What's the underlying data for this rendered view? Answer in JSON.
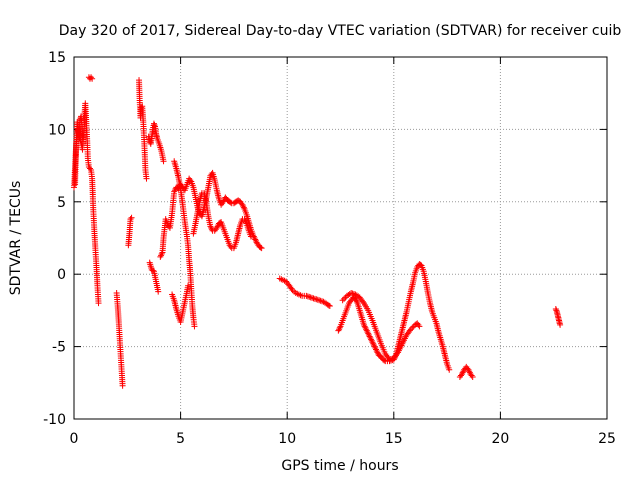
{
  "chart_data": {
    "type": "scatter",
    "title": "Day 320 of 2017, Sidereal Day-to-day VTEC variation (SDTVAR) for receiver cuib",
    "xlabel": "GPS time / hours",
    "ylabel": "SDTVAR / TECUs",
    "xlim": [
      0,
      25
    ],
    "ylim": [
      -10,
      15
    ],
    "xticks": [
      0,
      5,
      10,
      15,
      20,
      25
    ],
    "yticks": [
      -10,
      -5,
      0,
      5,
      10,
      15
    ],
    "xtick_labels": [
      "0",
      "5",
      "10",
      "15",
      "20",
      "25"
    ],
    "ytick_labels": [
      "-10",
      "-5",
      "0",
      "5",
      "10",
      "15"
    ],
    "grid": true,
    "marker": "plus",
    "marker_color": "#ff0000",
    "series": [
      {
        "name": "SDTVAR",
        "segments": [
          [
            [
              0.0,
              6.0
            ],
            [
              0.08,
              8.2
            ],
            [
              0.12,
              9.6
            ],
            [
              0.15,
              10.5
            ],
            [
              0.2,
              9.8
            ],
            [
              0.25,
              9.4
            ],
            [
              0.28,
              10.6
            ],
            [
              0.33,
              10.9
            ],
            [
              0.38,
              10.2
            ],
            [
              0.42,
              9.0
            ],
            [
              0.46,
              9.9
            ],
            [
              0.5,
              11.2
            ],
            [
              0.53,
              11.8
            ],
            [
              0.58,
              10.4
            ],
            [
              0.62,
              9.2
            ],
            [
              0.65,
              8.0
            ],
            [
              0.7,
              7.4
            ],
            [
              0.75,
              7.3
            ],
            [
              0.8,
              7.2
            ],
            [
              0.85,
              6.6
            ],
            [
              0.88,
              5.5
            ],
            [
              0.9,
              4.6
            ],
            [
              0.95,
              3.1
            ],
            [
              1.0,
              1.8
            ],
            [
              1.05,
              0.6
            ],
            [
              1.1,
              -0.8
            ],
            [
              1.15,
              -2.0
            ]
          ],
          [
            [
              0.05,
              6.2
            ],
            [
              0.1,
              9.0
            ],
            [
              0.15,
              9.6
            ],
            [
              0.2,
              10.0
            ],
            [
              0.28,
              9.4
            ],
            [
              0.35,
              9.0
            ],
            [
              0.4,
              8.6
            ]
          ],
          [
            [
              0.7,
              13.6
            ],
            [
              0.75,
              13.5
            ],
            [
              0.8,
              13.6
            ],
            [
              0.85,
              13.5
            ]
          ],
          [
            [
              2.0,
              -1.3
            ],
            [
              2.05,
              -2.2
            ],
            [
              2.1,
              -3.3
            ],
            [
              2.15,
              -4.6
            ],
            [
              2.2,
              -5.8
            ],
            [
              2.25,
              -7.0
            ],
            [
              2.28,
              -7.7
            ]
          ],
          [
            [
              2.55,
              2.0
            ],
            [
              2.6,
              2.8
            ],
            [
              2.65,
              3.8
            ],
            [
              2.7,
              3.9
            ]
          ],
          [
            [
              3.05,
              13.4
            ],
            [
              3.08,
              12.0
            ],
            [
              3.12,
              10.8
            ],
            [
              3.15,
              11.5
            ],
            [
              3.2,
              11.6
            ],
            [
              3.25,
              10.5
            ],
            [
              3.3,
              9.0
            ],
            [
              3.35,
              7.2
            ],
            [
              3.4,
              6.6
            ]
          ],
          [
            [
              3.5,
              9.5
            ],
            [
              3.55,
              9.2
            ],
            [
              3.6,
              9.0
            ],
            [
              3.65,
              9.5
            ],
            [
              3.7,
              10.0
            ],
            [
              3.75,
              10.4
            ],
            [
              3.8,
              10.2
            ],
            [
              3.85,
              9.7
            ],
            [
              3.9,
              9.4
            ],
            [
              4.0,
              9.0
            ],
            [
              4.1,
              8.5
            ],
            [
              4.2,
              7.8
            ]
          ],
          [
            [
              3.55,
              0.8
            ],
            [
              3.65,
              0.3
            ],
            [
              3.75,
              0.2
            ],
            [
              3.85,
              -0.5
            ],
            [
              3.95,
              -1.2
            ]
          ],
          [
            [
              4.05,
              1.2
            ],
            [
              4.15,
              1.5
            ],
            [
              4.2,
              2.5
            ],
            [
              4.3,
              3.8
            ],
            [
              4.4,
              3.4
            ],
            [
              4.5,
              3.2
            ],
            [
              4.6,
              4.2
            ],
            [
              4.7,
              5.7
            ],
            [
              4.8,
              6.0
            ],
            [
              4.9,
              5.9
            ],
            [
              5.0,
              6.2
            ],
            [
              5.1,
              6.0
            ],
            [
              5.2,
              5.8
            ],
            [
              5.3,
              6.2
            ],
            [
              5.4,
              6.6
            ],
            [
              5.5,
              6.4
            ],
            [
              5.6,
              6.0
            ],
            [
              5.7,
              5.3
            ],
            [
              5.8,
              4.6
            ],
            [
              5.9,
              4.2
            ],
            [
              6.0,
              4.0
            ],
            [
              6.1,
              4.6
            ],
            [
              6.2,
              5.2
            ],
            [
              6.3,
              6.0
            ],
            [
              6.4,
              6.8
            ],
            [
              6.5,
              7.0
            ],
            [
              6.6,
              6.5
            ],
            [
              6.7,
              5.8
            ],
            [
              6.8,
              5.2
            ],
            [
              6.9,
              4.8
            ],
            [
              7.0,
              5.0
            ],
            [
              7.1,
              5.3
            ],
            [
              7.2,
              5.1
            ],
            [
              7.3,
              5.0
            ],
            [
              7.4,
              4.9
            ],
            [
              7.5,
              4.9
            ],
            [
              7.6,
              5.0
            ],
            [
              7.7,
              5.1
            ],
            [
              7.8,
              5.0
            ],
            [
              7.9,
              4.8
            ],
            [
              8.0,
              4.5
            ],
            [
              8.1,
              4.1
            ],
            [
              8.2,
              3.6
            ],
            [
              8.3,
              3.1
            ],
            [
              8.4,
              2.7
            ],
            [
              8.5,
              2.4
            ],
            [
              8.6,
              2.1
            ],
            [
              8.7,
              1.9
            ],
            [
              8.8,
              1.8
            ]
          ],
          [
            [
              4.7,
              7.8
            ],
            [
              4.8,
              7.3
            ],
            [
              4.9,
              6.7
            ],
            [
              5.0,
              5.9
            ],
            [
              5.1,
              4.8
            ],
            [
              5.2,
              3.6
            ],
            [
              5.3,
              2.6
            ],
            [
              5.35,
              2.0
            ],
            [
              5.4,
              1.0
            ],
            [
              5.45,
              0.2
            ],
            [
              5.5,
              -1.0
            ],
            [
              5.55,
              -2.2
            ],
            [
              5.6,
              -3.0
            ],
            [
              5.65,
              -3.6
            ]
          ],
          [
            [
              4.6,
              -1.4
            ],
            [
              4.7,
              -1.8
            ],
            [
              4.8,
              -2.4
            ],
            [
              4.9,
              -2.9
            ],
            [
              5.0,
              -3.3
            ],
            [
              5.1,
              -2.6
            ],
            [
              5.2,
              -1.9
            ],
            [
              5.3,
              -1.2
            ],
            [
              5.35,
              -0.8
            ]
          ],
          [
            [
              5.6,
              2.8
            ],
            [
              5.7,
              3.5
            ],
            [
              5.8,
              4.3
            ],
            [
              5.9,
              5.1
            ],
            [
              6.0,
              5.6
            ],
            [
              6.1,
              5.6
            ],
            [
              6.2,
              5.0
            ],
            [
              6.3,
              4.0
            ],
            [
              6.4,
              3.3
            ],
            [
              6.5,
              3.0
            ],
            [
              6.6,
              3.0
            ],
            [
              6.7,
              3.2
            ],
            [
              6.8,
              3.5
            ],
            [
              6.9,
              3.6
            ],
            [
              7.0,
              3.2
            ],
            [
              7.1,
              2.8
            ],
            [
              7.2,
              2.4
            ],
            [
              7.3,
              2.0
            ],
            [
              7.4,
              1.8
            ],
            [
              7.5,
              1.8
            ],
            [
              7.6,
              2.2
            ],
            [
              7.7,
              2.8
            ],
            [
              7.8,
              3.4
            ],
            [
              7.9,
              3.8
            ],
            [
              8.0,
              3.8
            ],
            [
              8.1,
              3.5
            ],
            [
              8.2,
              3.0
            ],
            [
              8.3,
              2.6
            ]
          ],
          [
            [
              9.65,
              -0.3
            ],
            [
              9.8,
              -0.4
            ],
            [
              9.95,
              -0.5
            ],
            [
              10.1,
              -0.8
            ],
            [
              10.25,
              -1.1
            ],
            [
              10.4,
              -1.3
            ],
            [
              10.55,
              -1.4
            ],
            [
              10.7,
              -1.5
            ],
            [
              10.9,
              -1.5
            ],
            [
              11.1,
              -1.6
            ],
            [
              11.3,
              -1.7
            ],
            [
              11.5,
              -1.8
            ],
            [
              11.7,
              -1.9
            ],
            [
              11.9,
              -2.1
            ],
            [
              12.0,
              -2.2
            ]
          ],
          [
            [
              12.4,
              -3.9
            ],
            [
              12.5,
              -3.6
            ],
            [
              12.6,
              -3.2
            ],
            [
              12.7,
              -2.8
            ],
            [
              12.8,
              -2.4
            ],
            [
              12.9,
              -2.0
            ],
            [
              13.0,
              -1.8
            ],
            [
              13.1,
              -1.6
            ],
            [
              13.2,
              -1.7
            ],
            [
              13.3,
              -2.0
            ],
            [
              13.4,
              -2.5
            ],
            [
              13.5,
              -3.0
            ],
            [
              13.6,
              -3.5
            ],
            [
              13.7,
              -3.8
            ],
            [
              13.8,
              -4.1
            ],
            [
              13.9,
              -4.4
            ],
            [
              14.0,
              -4.7
            ],
            [
              14.1,
              -5.0
            ],
            [
              14.2,
              -5.3
            ],
            [
              14.3,
              -5.6
            ],
            [
              14.4,
              -5.7
            ],
            [
              14.5,
              -5.9
            ],
            [
              14.6,
              -6.0
            ],
            [
              14.8,
              -6.0
            ],
            [
              15.0,
              -5.9
            ],
            [
              15.1,
              -5.6
            ],
            [
              15.2,
              -5.0
            ],
            [
              15.3,
              -4.4
            ],
            [
              15.4,
              -3.8
            ],
            [
              15.5,
              -3.2
            ],
            [
              15.6,
              -2.6
            ],
            [
              15.7,
              -1.9
            ],
            [
              15.8,
              -1.2
            ],
            [
              15.9,
              -0.6
            ],
            [
              16.0,
              0.1
            ],
            [
              16.1,
              0.5
            ],
            [
              16.2,
              0.7
            ],
            [
              16.3,
              0.6
            ],
            [
              16.4,
              0.2
            ],
            [
              16.5,
              -0.5
            ],
            [
              16.6,
              -1.3
            ],
            [
              16.7,
              -2.0
            ],
            [
              16.8,
              -2.6
            ],
            [
              16.9,
              -3.0
            ],
            [
              17.0,
              -3.4
            ],
            [
              17.1,
              -4.0
            ],
            [
              17.2,
              -4.5
            ],
            [
              17.3,
              -5.0
            ],
            [
              17.4,
              -5.6
            ],
            [
              17.5,
              -6.2
            ],
            [
              17.6,
              -6.6
            ]
          ],
          [
            [
              12.6,
              -1.8
            ],
            [
              12.8,
              -1.5
            ],
            [
              13.0,
              -1.3
            ],
            [
              13.2,
              -1.4
            ],
            [
              13.4,
              -1.6
            ],
            [
              13.6,
              -2.0
            ],
            [
              13.8,
              -2.5
            ],
            [
              14.0,
              -3.2
            ],
            [
              14.2,
              -4.0
            ],
            [
              14.4,
              -4.8
            ],
            [
              14.6,
              -5.5
            ],
            [
              14.8,
              -5.9
            ],
            [
              15.0,
              -5.8
            ],
            [
              15.2,
              -5.4
            ],
            [
              15.4,
              -4.8
            ],
            [
              15.6,
              -4.2
            ],
            [
              15.8,
              -3.8
            ],
            [
              16.0,
              -3.5
            ],
            [
              16.1,
              -3.4
            ],
            [
              16.2,
              -3.6
            ]
          ],
          [
            [
              18.1,
              -7.1
            ],
            [
              18.2,
              -6.9
            ],
            [
              18.3,
              -6.6
            ],
            [
              18.4,
              -6.4
            ],
            [
              18.5,
              -6.6
            ],
            [
              18.6,
              -6.9
            ],
            [
              18.7,
              -7.1
            ]
          ],
          [
            [
              22.6,
              -2.4
            ],
            [
              22.65,
              -2.6
            ],
            [
              22.7,
              -2.9
            ],
            [
              22.75,
              -3.2
            ],
            [
              22.8,
              -3.5
            ]
          ]
        ]
      }
    ]
  }
}
